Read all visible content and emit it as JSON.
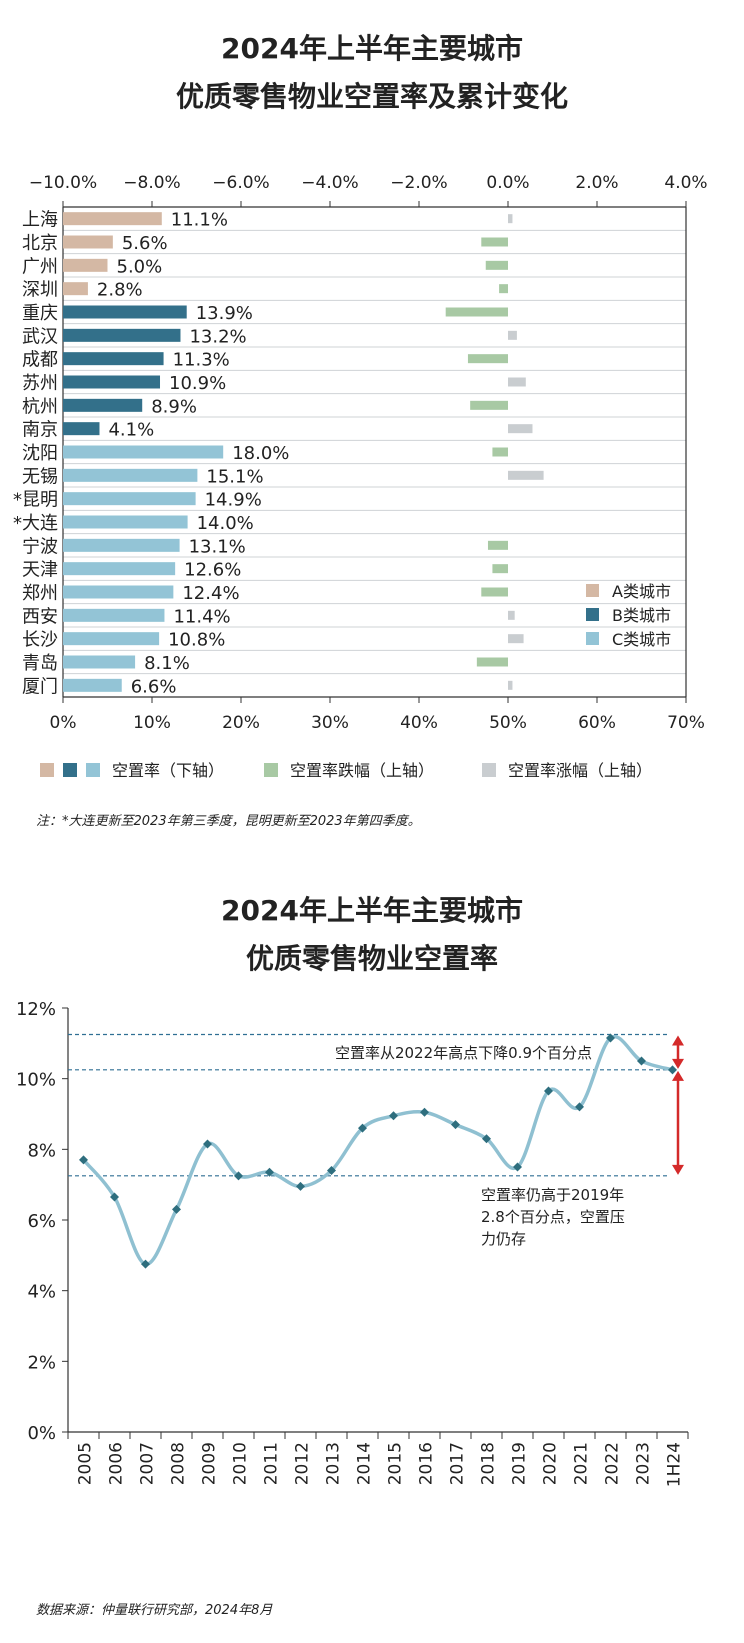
{
  "charts": [
    {
      "type": "bar",
      "title_line1": "2024年上半年主要城市",
      "title_line2": "优质零售物业空置率及累计变化",
      "top_axis_ticks": [
        "−10.0%",
        "−8.0%",
        "−6.0%",
        "−4.0%",
        "−2.0%",
        "0.0%",
        "2.0%",
        "4.0%"
      ],
      "top_axis_range": [
        -10,
        4
      ],
      "bottom_axis_ticks": [
        "0%",
        "10%",
        "20%",
        "30%",
        "40%",
        "50%",
        "60%",
        "70%"
      ],
      "bottom_axis_range": [
        0,
        70
      ],
      "categories": [
        "上海",
        "北京",
        "广州",
        "深圳",
        "重庆",
        "武汉",
        "成都",
        "苏州",
        "杭州",
        "南京",
        "沈阳",
        "无锡",
        "*昆明",
        "*大连",
        "宁波",
        "天津",
        "郑州",
        "西安",
        "长沙",
        "青岛",
        "厦门"
      ],
      "groups": [
        "A",
        "A",
        "A",
        "A",
        "B",
        "B",
        "B",
        "B",
        "B",
        "B",
        "C",
        "C",
        "C",
        "C",
        "C",
        "C",
        "C",
        "C",
        "C",
        "C",
        "C"
      ],
      "vacancy": [
        11.1,
        5.6,
        5.0,
        2.8,
        13.9,
        13.2,
        11.3,
        10.9,
        8.9,
        4.1,
        18.0,
        15.1,
        14.9,
        14.0,
        13.1,
        12.6,
        12.4,
        11.4,
        10.8,
        8.1,
        6.6
      ],
      "vacancy_labels": [
        "11.1%",
        "5.6%",
        "5.0%",
        "2.8%",
        "13.9%",
        "13.2%",
        "11.3%",
        "10.9%",
        "8.9%",
        "4.1%",
        "18.0%",
        "15.1%",
        "14.9%",
        "14.0%",
        "13.1%",
        "12.6%",
        "12.4%",
        "11.4%",
        "10.8%",
        "8.1%",
        "6.6%"
      ],
      "change": [
        0.1,
        -0.6,
        -0.5,
        -0.2,
        -1.4,
        0.2,
        -0.9,
        0.4,
        -0.85,
        0.55,
        -0.35,
        0.8,
        0,
        0,
        -0.45,
        -0.35,
        -0.6,
        0.15,
        0.35,
        -0.7,
        0.1
      ],
      "legend_cities": [
        {
          "label": "A类城市",
          "color": "#d4b8a4"
        },
        {
          "label": "B类城市",
          "color": "#33708a"
        },
        {
          "label": "C类城市",
          "color": "#93c4d6"
        }
      ],
      "bottom_legend": {
        "vacancy": "空置率（下轴）",
        "decline": "空置率跌幅（上轴）",
        "rise": "空置率涨幅（上轴）"
      },
      "colors": {
        "A": "#d4b8a4",
        "B": "#33708a",
        "C": "#93c4d6",
        "decline": "#a8c9a4",
        "rise": "#c9cdd0"
      }
    },
    {
      "type": "line",
      "title_line1": "2024年上半年主要城市",
      "title_line2": "优质零售物业空置率",
      "categories": [
        "2005",
        "2006",
        "2007",
        "2008",
        "2009",
        "2010",
        "2011",
        "2012",
        "2013",
        "2014",
        "2015",
        "2016",
        "2017",
        "2018",
        "2019",
        "2020",
        "2021",
        "2022",
        "2023",
        "1H24"
      ],
      "values": [
        7.7,
        6.65,
        4.75,
        6.3,
        8.15,
        7.25,
        7.35,
        6.95,
        7.4,
        8.6,
        8.95,
        9.05,
        8.7,
        8.3,
        7.5,
        9.65,
        9.2,
        11.15,
        10.5,
        10.25
      ],
      "y_ticks": [
        "0%",
        "2%",
        "4%",
        "6%",
        "8%",
        "10%",
        "12%"
      ],
      "ylim": [
        0,
        12
      ],
      "reference_lines": [
        11.25,
        10.25,
        7.25
      ],
      "annotation_top": "空置率从2022年高点下降0.9个百分点",
      "annotation_bottom_lines": [
        "空置率仍高于2019年",
        "2.8个百分点，空置压",
        "力仍存"
      ],
      "colors": {
        "line": "#8fc0d1",
        "marker": "#2e6e7e",
        "ref": "#2f6f93",
        "arrow": "#d42a2a"
      }
    }
  ],
  "footnote": "注：*大连更新至2023年第三季度，昆明更新至2023年第四季度。",
  "source": "数据来源：仲量联行研究部，2024年8月"
}
